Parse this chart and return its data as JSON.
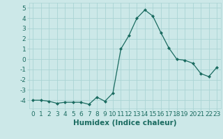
{
  "x": [
    0,
    1,
    2,
    3,
    4,
    5,
    6,
    7,
    8,
    9,
    10,
    11,
    12,
    13,
    14,
    15,
    16,
    17,
    18,
    19,
    20,
    21,
    22,
    23
  ],
  "y": [
    -4.0,
    -4.0,
    -4.1,
    -4.3,
    -4.2,
    -4.2,
    -4.2,
    -4.4,
    -3.7,
    -4.1,
    -3.3,
    1.0,
    2.3,
    4.0,
    4.8,
    4.2,
    2.6,
    1.1,
    0.0,
    -0.1,
    -0.4,
    -1.4,
    -1.7,
    -0.8
  ],
  "xlabel": "Humidex (Indice chaleur)",
  "ylim": [
    -4.8,
    5.5
  ],
  "xlim": [
    -0.5,
    23.5
  ],
  "yticks": [
    -4,
    -3,
    -2,
    -1,
    0,
    1,
    2,
    3,
    4,
    5
  ],
  "xticks": [
    0,
    1,
    2,
    3,
    4,
    5,
    6,
    7,
    8,
    9,
    10,
    11,
    12,
    13,
    14,
    15,
    16,
    17,
    18,
    19,
    20,
    21,
    22,
    23
  ],
  "line_color": "#1a6b60",
  "marker_color": "#1a6b60",
  "bg_color": "#cce8e8",
  "grid_color": "#aad4d4",
  "xlabel_fontsize": 7.5,
  "tick_fontsize": 6.5
}
